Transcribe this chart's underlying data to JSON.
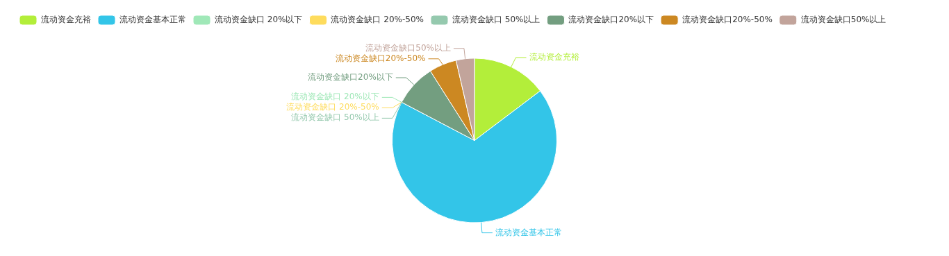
{
  "chart_data": {
    "type": "pie",
    "categories": [
      "流动资金充裕",
      "流动资金基本正常",
      "流动资金缺口 20%以下",
      "流动资金缺口 20%-50%",
      "流动资金缺口 50%以上",
      "流动资金缺口20%以下",
      "流动资金缺口20%-50%",
      "流动资金缺口50%以上"
    ],
    "values": [
      14.7,
      68,
      0,
      0,
      0,
      8.3,
      5.4,
      3.6
    ],
    "colors": [
      "#b3ee3a",
      "#33c5e8",
      "#a0e8b8",
      "#fedc5d",
      "#95c9ae",
      "#739e80",
      "#cc8822",
      "#c2a49b"
    ],
    "legend": "top"
  }
}
